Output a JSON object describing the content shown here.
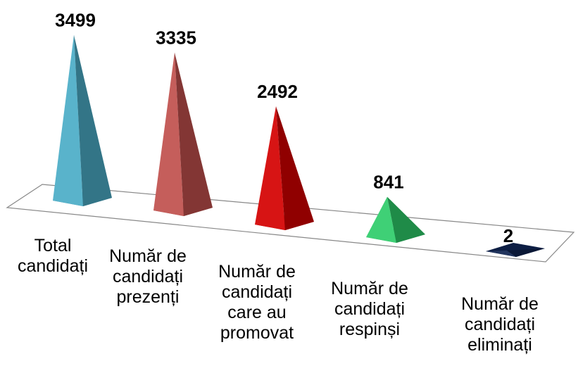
{
  "chart_data": {
    "type": "pyramid",
    "categories": [
      "Total candidați",
      "Număr de candidați prezenți",
      "Număr de candidați care au promovat",
      "Număr de candidați respinși",
      "Număr de candidați eliminați"
    ],
    "values": [
      3499,
      3335,
      2492,
      841,
      2
    ],
    "colors": [
      "#4bacc6",
      "#c0504d",
      "#d40000",
      "#2ecc6a",
      "#0f2350"
    ]
  }
}
